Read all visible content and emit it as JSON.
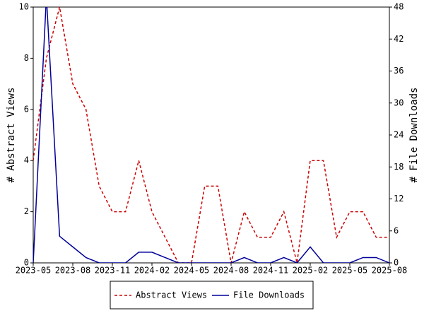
{
  "chart_data": {
    "type": "line",
    "x": [
      "2023-05",
      "2023-06",
      "2023-07",
      "2023-08",
      "2023-09",
      "2023-10",
      "2023-11",
      "2023-12",
      "2024-01",
      "2024-02",
      "2024-03",
      "2024-04",
      "2024-05",
      "2024-06",
      "2024-07",
      "2024-08",
      "2024-09",
      "2024-10",
      "2024-11",
      "2024-12",
      "2025-01",
      "2025-02",
      "2025-03",
      "2025-04",
      "2025-05",
      "2025-06",
      "2025-07",
      "2025-08"
    ],
    "xticks": [
      "2023-05",
      "2023-08",
      "2023-11",
      "2024-02",
      "2024-05",
      "2024-08",
      "2024-11",
      "2025-02",
      "2025-05",
      "2025-08"
    ],
    "ylabel": "# Abstract Views",
    "y2label": "# File Downloads",
    "ylim": [
      0,
      10
    ],
    "yticks": [
      0,
      2,
      4,
      6,
      8,
      10
    ],
    "y2lim": [
      0,
      48
    ],
    "y2ticks": [
      0,
      6,
      12,
      18,
      24,
      30,
      36,
      42,
      48
    ],
    "legend": "bottom",
    "series": [
      {
        "name": "Abstract Views",
        "color": "#cc0000",
        "dash": true,
        "values": [
          4,
          8,
          10,
          7,
          6,
          3,
          2,
          2,
          4,
          2,
          1,
          0,
          0,
          3,
          3,
          0,
          2,
          1,
          1,
          2,
          0,
          4,
          4,
          1,
          2,
          2,
          1,
          1
        ]
      },
      {
        "name": "File Downloads",
        "color": "#000099",
        "axis": "y2",
        "values": [
          0,
          50,
          5,
          3,
          1,
          0,
          0,
          0,
          2,
          2,
          1,
          0,
          0,
          0,
          0,
          0,
          1,
          0,
          0,
          1,
          0,
          3,
          0,
          0,
          0,
          1,
          1,
          0
        ]
      }
    ]
  }
}
